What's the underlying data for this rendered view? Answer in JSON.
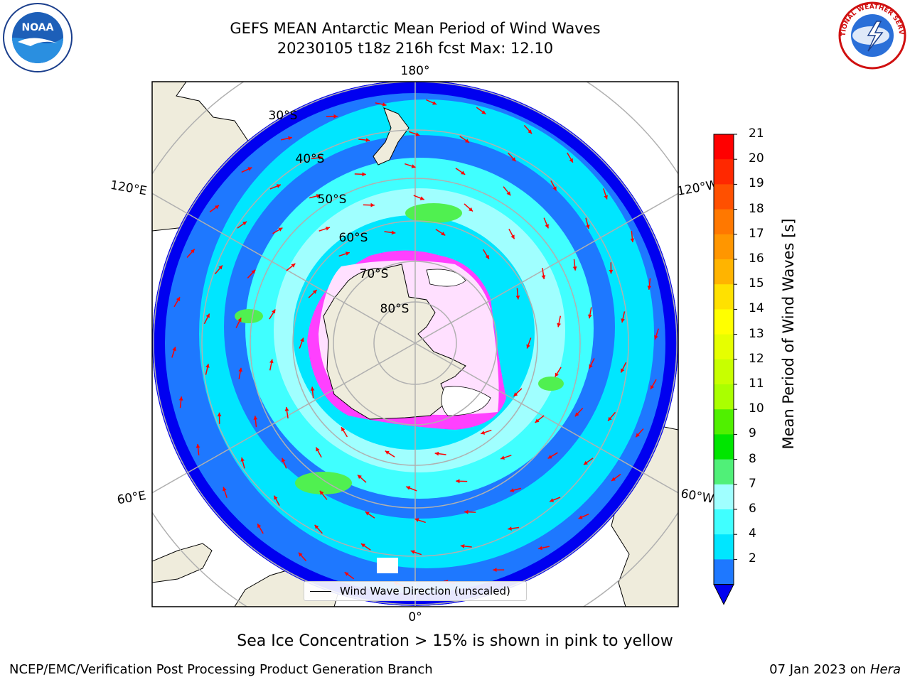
{
  "header": {
    "title_line1": "GEFS MEAN Antarctic Mean Period of Wind Waves",
    "title_line2": "20230105 t18z 216h fcst   Max: 12.10"
  },
  "logos": {
    "left": "noara-logo",
    "left_text": "NOAA",
    "right": "nws-logo",
    "right_text": "NATIONAL WEATHER SERVICE"
  },
  "map": {
    "lon_labels": {
      "top": "180°",
      "bottom": "0°",
      "left_upper": "120°E",
      "right_upper": "120°W",
      "left_lower": "60°E",
      "right_lower": "60°W"
    },
    "lat_labels": [
      "30°S",
      "40°S",
      "50°S",
      "60°S",
      "70°S",
      "80°S"
    ],
    "legend_label": "Wind Wave Direction (unscaled)",
    "colors": {
      "land": "#efecdc",
      "ocean_dark": "#0000f0",
      "ocean_blue": "#1e78ff",
      "ocean_cyan": "#00e6ff",
      "ocean_light": "#40ffff",
      "ocean_pale": "#a0ffff",
      "green": "#50f050",
      "ice_pink": "#ff40ff",
      "arrow": "#ff0000"
    }
  },
  "colorbar": {
    "label": "Mean Period of Wind Waves [s]",
    "ticks": [
      "21",
      "20",
      "19",
      "18",
      "17",
      "16",
      "15",
      "14",
      "13",
      "12",
      "11",
      "10",
      "9",
      "8",
      "7",
      "6",
      "4",
      "2"
    ],
    "tick_values": [
      21,
      20,
      19,
      18,
      17,
      16,
      15,
      14,
      13,
      12,
      11,
      10,
      9,
      8,
      7,
      6,
      4,
      2
    ],
    "colors": [
      "#ff0000",
      "#ff2800",
      "#ff5000",
      "#ff7800",
      "#ff9600",
      "#ffb400",
      "#ffe100",
      "#ffff00",
      "#e6ff00",
      "#c8ff00",
      "#aaff00",
      "#50f000",
      "#00e600",
      "#50f078",
      "#a0ffff",
      "#40ffff",
      "#00e6ff",
      "#1e78ff"
    ],
    "extend_color": "#0000f0"
  },
  "notes": {
    "sea_ice": "Sea Ice Concentration > 15% is shown in pink to yellow"
  },
  "footer": {
    "left": "NCEP/EMC/Verification Post Processing Product Generation Branch",
    "right_prefix": "07 Jan 2023 on ",
    "right_host": "Hera"
  }
}
